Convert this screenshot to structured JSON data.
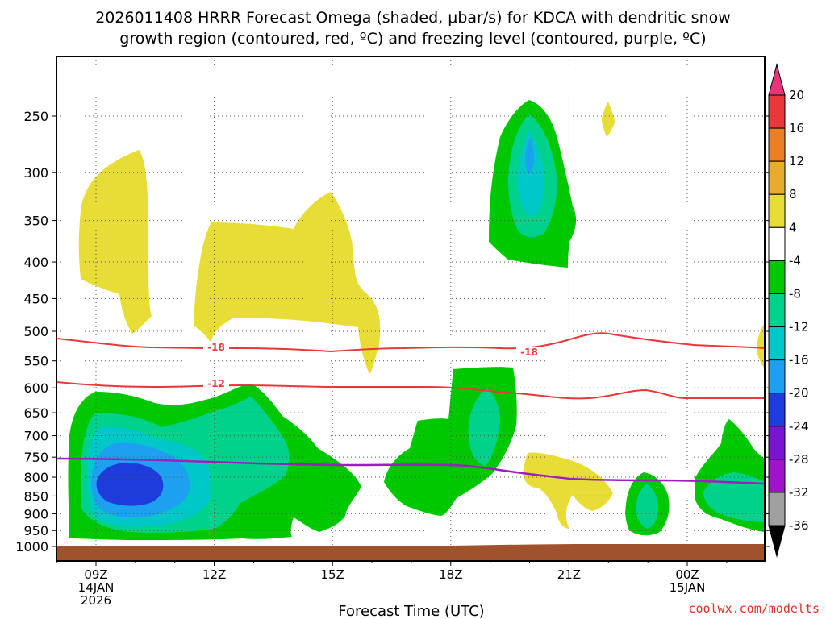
{
  "chart_data": {
    "type": "heatmap",
    "title_line1": "2026011408 HRRR Forecast Omega (shaded, μbar/s) for KDCA with dendritic snow",
    "title_line2": "growth region (contoured, red, ºC) and freezing level (contoured, purple, ºC)",
    "xlabel": "Forecast Time (UTC)",
    "credit": "coolwx.com/modelts",
    "x_ticks": [
      {
        "hour": 9,
        "lines": [
          "09Z",
          "14JAN",
          "2026"
        ]
      },
      {
        "hour": 12,
        "lines": [
          "12Z"
        ]
      },
      {
        "hour": 15,
        "lines": [
          "15Z"
        ]
      },
      {
        "hour": 18,
        "lines": [
          "18Z"
        ]
      },
      {
        "hour": 21,
        "lines": [
          "21Z"
        ]
      },
      {
        "hour": 24,
        "lines": [
          "00Z",
          "15JAN"
        ]
      }
    ],
    "xlim_hours": [
      8,
      26
    ],
    "y_ticks": [
      "250",
      "300",
      "350",
      "400",
      "450",
      "500",
      "550",
      "600",
      "650",
      "700",
      "750",
      "800",
      "850",
      "900",
      "950",
      "1000"
    ],
    "y_tick_values": [
      250,
      300,
      350,
      400,
      450,
      500,
      550,
      600,
      650,
      700,
      750,
      800,
      850,
      900,
      950,
      1000
    ],
    "colorbar": {
      "labels": [
        "20",
        "16",
        "12",
        "8",
        "4",
        "-4",
        "-8",
        "-12",
        "-16",
        "-20",
        "-24",
        "-28",
        "-32",
        "-36"
      ],
      "bins": [
        {
          "color": "#e8347a"
        },
        {
          "color": "#e8383a"
        },
        {
          "color": "#ea7f26"
        },
        {
          "color": "#e7ab2d"
        },
        {
          "color": "#e8dc36"
        },
        {
          "color": "#ffffff"
        },
        {
          "color": "#00c800"
        },
        {
          "color": "#00d28c"
        },
        {
          "color": "#00c8c8"
        },
        {
          "color": "#1ea0f0"
        },
        {
          "color": "#1e3cdc"
        },
        {
          "color": "#7814d2"
        },
        {
          "color": "#a014c8"
        },
        {
          "color": "#a0a0a0"
        },
        {
          "color": "#000000"
        }
      ]
    },
    "contour_labels": {
      "dgz_upper": "-18",
      "dgz_lower": "-12"
    },
    "colors": {
      "dgz_contour": "#e8383a",
      "freezing_level": "#9c1fbf",
      "ground": "#a0522d"
    },
    "omega_regions": [
      {
        "name": "yellow-upper-left",
        "value_bin": "4"
      },
      {
        "name": "yellow-upper-center",
        "value_bin": "4"
      },
      {
        "name": "green-upper-right",
        "value_bin": "-4"
      },
      {
        "name": "green-lower-left",
        "value_bin": "-4"
      },
      {
        "name": "green-lower-center",
        "value_bin": "-4"
      },
      {
        "name": "blue-core-lower-left",
        "value_bin": "-20"
      }
    ]
  }
}
